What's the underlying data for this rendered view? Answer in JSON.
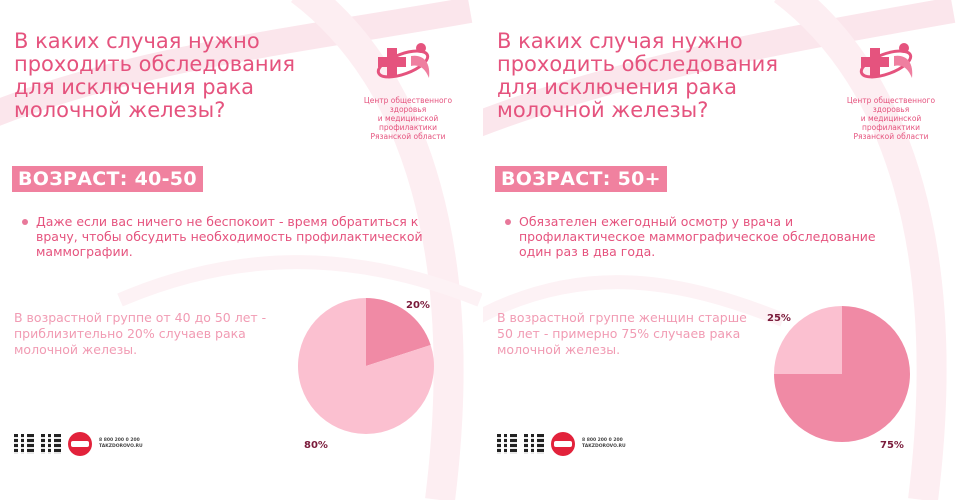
{
  "logo": {
    "text_line1": "Центр общественного здоровья",
    "text_line2": "и медицинской профилактики",
    "text_line3": "Рязанской области",
    "icon": "medical-cross-figure-icon"
  },
  "footer": {
    "phone": "8 800 200 0 200",
    "site": "TAKZDOROVO.RU",
    "stamp_icon": "take-care-stamp-icon",
    "qr_icon": "qr-code-icon"
  },
  "colors": {
    "title": "#e5537e",
    "badge": "#f0819f",
    "pie_light": "#fbc0d0",
    "pie_dark": "#f08aa5",
    "stat_text": "#f19bb3"
  },
  "panels": [
    {
      "title": "В каких случая нужно проходить обследования для исключения рака молочной железы?",
      "badge": "ВОЗРАСТ: 40-50",
      "bullet": "Даже если вас ничего не беспокоит - время обратиться к врачу, чтобы обсудить необходимость профилактической маммографии.",
      "stat": "В возрастной группе от 40 до 50 лет - приблизительно 20% случаев рака молочной железы.",
      "chart_data": {
        "type": "pie",
        "categories": [
          "20%",
          "80%"
        ],
        "values": [
          20,
          80
        ],
        "labels": [
          "20%",
          "80%"
        ]
      }
    },
    {
      "title": "В каких случая нужно проходить обследования для исключения рака молочной железы?",
      "badge": "ВОЗРАСТ: 50+",
      "bullet": "Обязателен ежегодный осмотр у врача и профилактическое маммографическое обследование один раз в два года.",
      "stat": "В возрастной группе женщин старше 50 лет - примерно 75% случаев рака молочной железы.",
      "chart_data": {
        "type": "pie",
        "categories": [
          "75%",
          "25%"
        ],
        "values": [
          75,
          25
        ],
        "labels": [
          "75%",
          "25%"
        ]
      }
    }
  ]
}
